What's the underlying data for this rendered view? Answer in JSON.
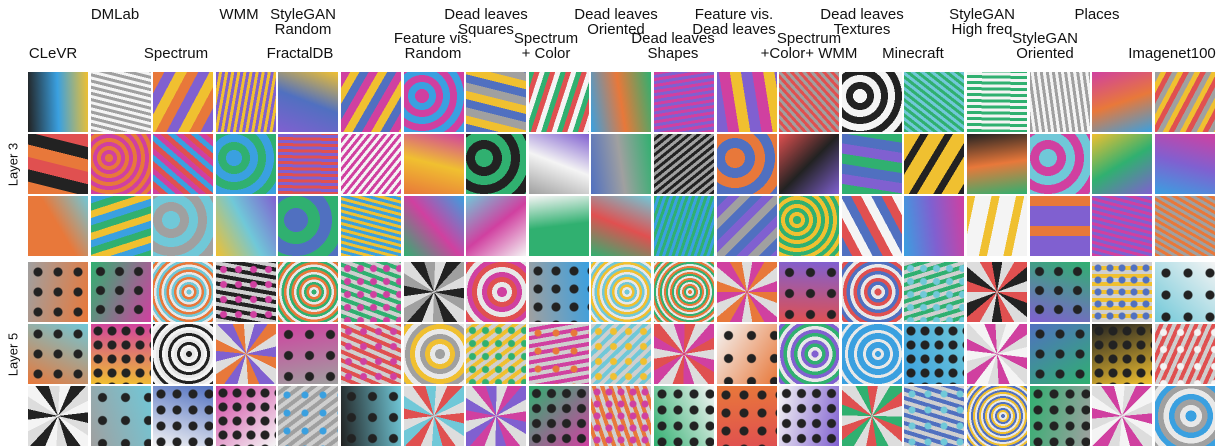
{
  "headers_top": [
    {
      "lines": [
        "DMLab"
      ]
    },
    {
      "lines": [
        "WMM"
      ]
    },
    {
      "lines": [
        "StyleGAN",
        "Random"
      ]
    },
    {
      "lines": [
        "Dead leaves",
        "Squares"
      ]
    },
    {
      "lines": [
        "Dead leaves",
        "Oriented"
      ]
    },
    {
      "lines": [
        "Feature vis.",
        "Dead leaves"
      ]
    },
    {
      "lines": [
        "Dead leaves",
        "Textures"
      ]
    },
    {
      "lines": [
        "StyleGAN",
        "High freq"
      ]
    },
    {
      "lines": [
        "Places"
      ]
    }
  ],
  "headers_bottom": [
    {
      "lines": [
        "CLeVR"
      ]
    },
    {
      "lines": [
        "Spectrum"
      ]
    },
    {
      "lines": [
        "FractalDB"
      ]
    },
    {
      "lines": [
        "Feature vis.",
        "Random"
      ]
    },
    {
      "lines": [
        "Spectrum",
        "+ Color"
      ]
    },
    {
      "lines": [
        "Dead leaves",
        "Shapes"
      ]
    },
    {
      "lines": [
        "Spectrum",
        "+Color+ WMM"
      ]
    },
    {
      "lines": [
        "Minecraft"
      ]
    },
    {
      "lines": [
        "StyleGAN",
        "Oriented"
      ]
    },
    {
      "lines": [
        "Imagenet100"
      ]
    }
  ],
  "row_labels": [
    "Layer 3",
    "Layer 5"
  ],
  "grid": {
    "columns": 19,
    "rows_per_layer": 3,
    "palette": [
      "#e8783a",
      "#3aa0e0",
      "#f0c030",
      "#d040a0",
      "#30b070",
      "#8060d0",
      "#222222",
      "#f4f4f4",
      "#70c8d8",
      "#e05050",
      "#a0a0a0",
      "#5070c0"
    ]
  }
}
